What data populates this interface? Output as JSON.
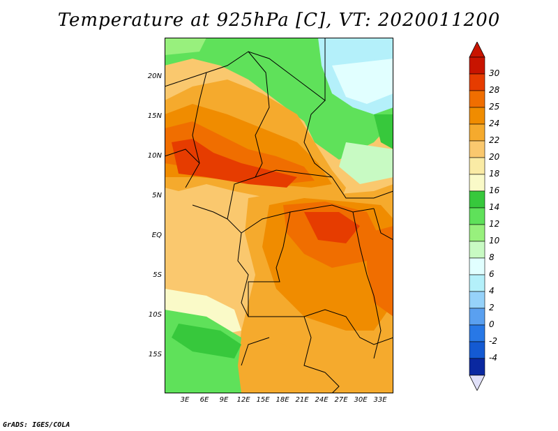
{
  "title": "Temperature at 925hPa [C], VT: 2020011200",
  "credit": "GrADS: IGES/COLA",
  "lat_labels": [
    "20N",
    "15N",
    "10N",
    "5N",
    "EQ",
    "5S",
    "10S",
    "15S"
  ],
  "lon_labels": [
    "3E",
    "6E",
    "9E",
    "12E",
    "15E",
    "18E",
    "21E",
    "24E",
    "27E",
    "30E",
    "33E"
  ],
  "colorbar": {
    "labels": [
      "30",
      "28",
      "25",
      "24",
      "22",
      "20",
      "18",
      "16",
      "14",
      "12",
      "10",
      "8",
      "6",
      "4",
      "2",
      "0",
      "-2",
      "-4"
    ],
    "colors": [
      "#c81400",
      "#e63c00",
      "#f06e00",
      "#f08c00",
      "#f5aa2d",
      "#fac86e",
      "#faeba5",
      "#fafac8",
      "#37c83c",
      "#5fe15a",
      "#98f07d",
      "#c8fac3",
      "#e1ffff",
      "#b4f0fa",
      "#96d2fa",
      "#5aa0f0",
      "#2878e6",
      "#145ad2",
      "#0a28a0"
    ]
  },
  "map": {
    "domain": "Central & Western Africa",
    "variable": "Temperature at 925hPa",
    "units": "C",
    "valid_time": "2020011200"
  }
}
